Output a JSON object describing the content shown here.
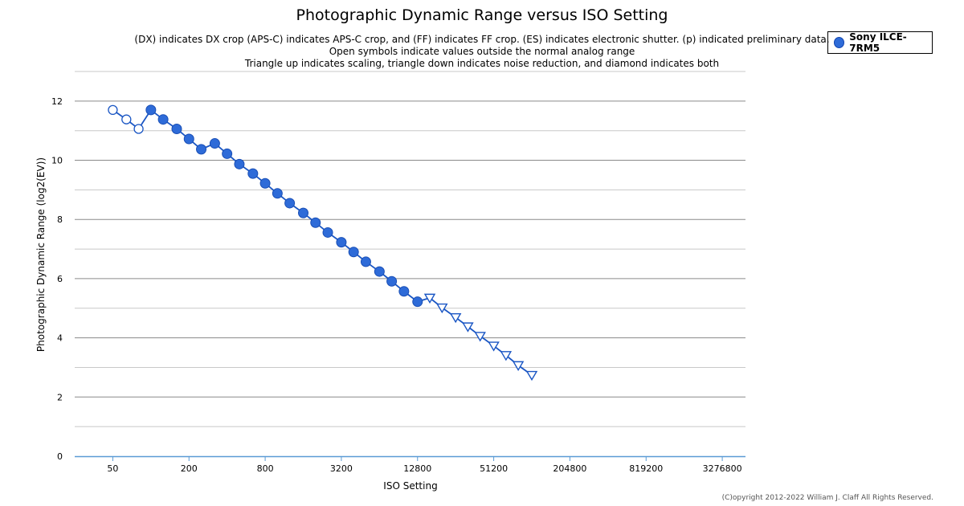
{
  "chart_data": {
    "type": "scatter",
    "title": "Photographic Dynamic Range versus ISO Setting",
    "subtitle_lines": [
      "(DX) indicates DX crop (APS-C) indicates APS-C crop, and (FF) indicates FF crop. (ES) indicates electronic shutter. (p) indicated preliminary data.",
      "Open symbols indicate values outside the normal analog range",
      "Triangle up indicates scaling, triangle down indicates noise reduction, and diamond indicates both"
    ],
    "xlabel": "ISO Setting",
    "ylabel": "Photographic Dynamic Range (log2(EV))",
    "x_scale": "log2",
    "xlim": [
      25,
      5000000
    ],
    "ylim": [
      0,
      13
    ],
    "x_ticks": [
      50,
      200,
      800,
      3200,
      12800,
      51200,
      204800,
      819200,
      3276800
    ],
    "x_tick_labels": [
      "50",
      "200",
      "800",
      "3200",
      "12800",
      "51200",
      "204800",
      "819200",
      "3276800"
    ],
    "y_ticks": [
      0,
      2,
      4,
      6,
      8,
      10,
      12
    ],
    "y_tick_labels": [
      "0",
      "2",
      "4",
      "6",
      "8",
      "10",
      "12"
    ],
    "grid": true,
    "legend_position": "top-right",
    "series": [
      {
        "name": "Sony ILCE-7RM5",
        "color": "#2e6bd8",
        "points": [
          {
            "x": 50,
            "y": 11.7,
            "marker": "open-circle"
          },
          {
            "x": 64,
            "y": 11.38,
            "marker": "open-circle"
          },
          {
            "x": 80,
            "y": 11.06,
            "marker": "open-circle"
          },
          {
            "x": 100,
            "y": 11.7,
            "marker": "circle"
          },
          {
            "x": 125,
            "y": 11.38,
            "marker": "circle"
          },
          {
            "x": 160,
            "y": 11.06,
            "marker": "circle"
          },
          {
            "x": 200,
            "y": 10.72,
            "marker": "circle"
          },
          {
            "x": 250,
            "y": 10.37,
            "marker": "circle"
          },
          {
            "x": 320,
            "y": 10.57,
            "marker": "circle"
          },
          {
            "x": 400,
            "y": 10.22,
            "marker": "circle"
          },
          {
            "x": 500,
            "y": 9.87,
            "marker": "circle"
          },
          {
            "x": 640,
            "y": 9.55,
            "marker": "circle"
          },
          {
            "x": 800,
            "y": 9.22,
            "marker": "circle"
          },
          {
            "x": 1000,
            "y": 8.88,
            "marker": "circle"
          },
          {
            "x": 1250,
            "y": 8.55,
            "marker": "circle"
          },
          {
            "x": 1600,
            "y": 8.22,
            "marker": "circle"
          },
          {
            "x": 2000,
            "y": 7.89,
            "marker": "circle"
          },
          {
            "x": 2500,
            "y": 7.56,
            "marker": "circle"
          },
          {
            "x": 3200,
            "y": 7.23,
            "marker": "circle"
          },
          {
            "x": 4000,
            "y": 6.9,
            "marker": "circle"
          },
          {
            "x": 5000,
            "y": 6.57,
            "marker": "circle"
          },
          {
            "x": 6400,
            "y": 6.24,
            "marker": "circle"
          },
          {
            "x": 8000,
            "y": 5.91,
            "marker": "circle"
          },
          {
            "x": 10000,
            "y": 5.57,
            "marker": "circle"
          },
          {
            "x": 12800,
            "y": 5.22,
            "marker": "circle"
          },
          {
            "x": 16000,
            "y": 5.35,
            "marker": "open-triangle-down"
          },
          {
            "x": 20000,
            "y": 5.02,
            "marker": "open-triangle-down"
          },
          {
            "x": 25600,
            "y": 4.69,
            "marker": "open-triangle-down"
          },
          {
            "x": 32000,
            "y": 4.38,
            "marker": "open-triangle-down"
          },
          {
            "x": 40000,
            "y": 4.06,
            "marker": "open-triangle-down"
          },
          {
            "x": 51200,
            "y": 3.73,
            "marker": "open-triangle-down"
          },
          {
            "x": 64000,
            "y": 3.41,
            "marker": "open-triangle-down"
          },
          {
            "x": 80000,
            "y": 3.07,
            "marker": "open-triangle-down"
          },
          {
            "x": 102400,
            "y": 2.74,
            "marker": "open-triangle-down"
          }
        ]
      }
    ]
  },
  "copyright": "(C)opyright 2012-2022 William J. Claff All Rights Reserved."
}
